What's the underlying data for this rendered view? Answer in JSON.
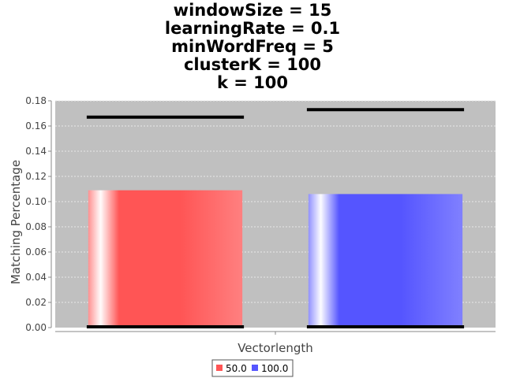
{
  "chart_data": {
    "type": "bar",
    "title_lines": [
      "windowSize = 15",
      "learningRate = 0.1",
      "minWordFreq = 5",
      "clusterK = 100",
      "k = 100"
    ],
    "xlabel": "Vectorlength",
    "ylabel": "Matching Percentage",
    "ylim": [
      0,
      0.18
    ],
    "yticks": [
      "0.00",
      "0.02",
      "0.04",
      "0.06",
      "0.08",
      "0.10",
      "0.12",
      "0.14",
      "0.16",
      "0.18"
    ],
    "grid": true,
    "legend_placement": "bottom",
    "series": [
      {
        "name": "50.0",
        "value": 0.109,
        "interval": [
          0,
          0.167
        ],
        "color": "#ff5555"
      },
      {
        "name": "100.0",
        "value": 0.106,
        "interval": [
          0,
          0.173
        ],
        "color": "#5555ff"
      }
    ],
    "colors": {
      "plot_background": "#c0c0c0",
      "grid": "#e8e8e8",
      "interval": "#000000"
    }
  }
}
